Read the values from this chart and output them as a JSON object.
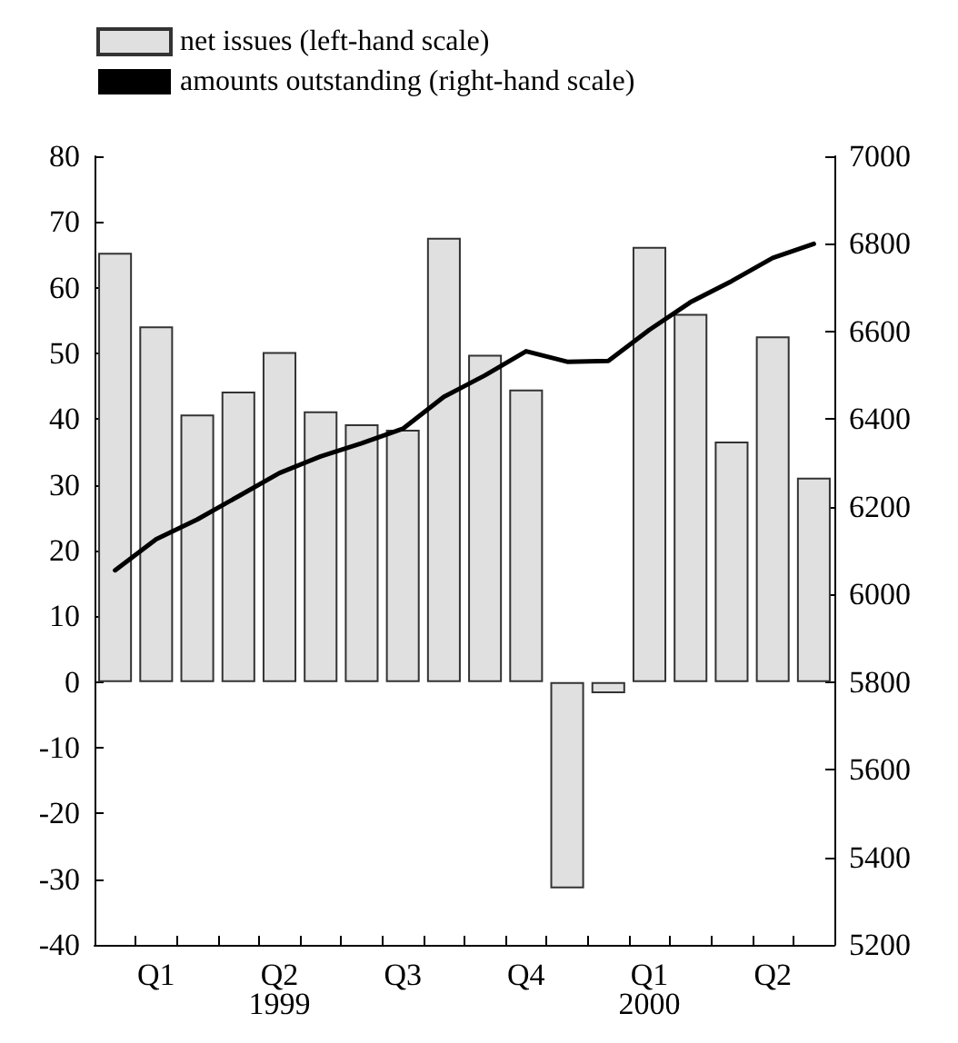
{
  "chart_data": {
    "type": "bar",
    "categories": [
      null,
      "Q1",
      null,
      null,
      "Q2",
      null,
      null,
      "Q3",
      null,
      null,
      "Q4",
      null,
      null,
      "Q1",
      null,
      null,
      "Q2",
      null
    ],
    "series": [
      {
        "name": "net issues (left-hand scale)",
        "color": "#e0e0e0",
        "values": [
          65.3,
          54.1,
          40.7,
          44.2,
          50.2,
          41.2,
          39.2,
          38.4,
          67.6,
          49.8,
          44.5,
          -31.4,
          -1.7,
          66.2,
          56.0,
          36.6,
          52.6,
          31.1
        ]
      },
      {
        "name": "amounts outstanding (right-hand scale)",
        "type": "line",
        "axis": "y2",
        "color": "#000000",
        "values": [
          6055,
          6126,
          6171,
          6224,
          6277,
          6315,
          6345,
          6378,
          6451,
          6500,
          6555,
          6531,
          6533,
          6604,
          6667,
          6715,
          6768,
          6800
        ]
      }
    ],
    "annotations": [
      "1999",
      "2000"
    ],
    "ylim": [
      -40,
      80
    ],
    "yticks": [
      -40,
      -30,
      -20,
      -10,
      0,
      10,
      20,
      30,
      40,
      50,
      60,
      70,
      80
    ],
    "y2lim": [
      5200,
      7000
    ],
    "y2ticks": [
      5200,
      5400,
      5600,
      5800,
      6000,
      6200,
      6400,
      6600,
      6800,
      7000
    ],
    "legend": "top left",
    "grid": false,
    "marker": "none",
    "line_style": "solid"
  }
}
